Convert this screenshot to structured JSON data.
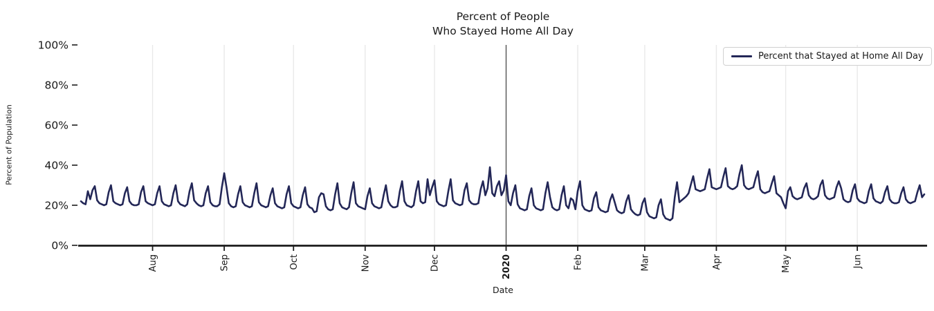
{
  "colors": {
    "line": "#232757",
    "month_grid": "#e9e9e9",
    "year_grid": "#3d3d3d",
    "axis": "#1a1a1a",
    "text": "#1a1a1a",
    "legend_border": "#d0d0d0",
    "background": "#ffffff"
  },
  "chart_data": {
    "type": "line",
    "title_lines": [
      "Percent of People",
      "Who Stayed Home All Day"
    ],
    "xlabel": "Date",
    "ylabel": "Percent of Population",
    "ylim": [
      0,
      100
    ],
    "grid": "vertical-month-lines-only",
    "legend_position": "upper right",
    "yticks": [
      {
        "label": "0%",
        "value": 0
      },
      {
        "label": "20%",
        "value": 20
      },
      {
        "label": "40%",
        "value": 40
      },
      {
        "label": "60%",
        "value": 60
      },
      {
        "label": "80%",
        "value": 80
      },
      {
        "label": "100%",
        "value": 100
      }
    ],
    "xticks": [
      {
        "label": "Aug",
        "day": 31,
        "bold": false
      },
      {
        "label": "Sep",
        "day": 62,
        "bold": false
      },
      {
        "label": "Oct",
        "day": 92,
        "bold": false
      },
      {
        "label": "Nov",
        "day": 123,
        "bold": false
      },
      {
        "label": "Dec",
        "day": 153,
        "bold": false
      },
      {
        "label": "2020",
        "day": 184,
        "bold": true
      },
      {
        "label": "Feb",
        "day": 215,
        "bold": false
      },
      {
        "label": "Mar",
        "day": 244,
        "bold": false
      },
      {
        "label": "Apr",
        "day": 275,
        "bold": false
      },
      {
        "label": "May",
        "day": 305,
        "bold": false
      },
      {
        "label": "Jun",
        "day": 336,
        "bold": false
      }
    ],
    "x_span_days": 366,
    "series": [
      {
        "name": "Percent that Stayed at Home All Day",
        "values": [
          22,
          21,
          20.5,
          27,
          23,
          27.5,
          29.5,
          22.5,
          21,
          20.5,
          20,
          20.5,
          26.5,
          30,
          22,
          21,
          20.5,
          20,
          20.5,
          26,
          29,
          22,
          20.5,
          20,
          20,
          20.5,
          26.5,
          29.5,
          22,
          21,
          20.5,
          20,
          20.5,
          26,
          29.5,
          22,
          20.5,
          20,
          19.5,
          20,
          26,
          30,
          22,
          20.5,
          20,
          19.5,
          20.5,
          27,
          31,
          22.5,
          21,
          20,
          19.5,
          20,
          26,
          29.5,
          21.5,
          20,
          19.5,
          19.5,
          20.5,
          29,
          36,
          29,
          21,
          19.5,
          19,
          19.5,
          25.5,
          29.5,
          21.5,
          20,
          19.5,
          19,
          19.5,
          26,
          31,
          21.5,
          20,
          19.5,
          19,
          19.5,
          25,
          28.5,
          21,
          19.5,
          19,
          18.5,
          19,
          25.5,
          29.5,
          21,
          19.5,
          19,
          18.5,
          19,
          25,
          29,
          20.5,
          19,
          18.5,
          16.5,
          17,
          24,
          26,
          25.5,
          19.5,
          18,
          17.5,
          18,
          25.5,
          31,
          21,
          19,
          18.5,
          18,
          19,
          26,
          31.5,
          21,
          19.5,
          19,
          18.5,
          18,
          24.5,
          28.5,
          21,
          19.5,
          19,
          18.5,
          19,
          25,
          30,
          22,
          20,
          19,
          19,
          19.5,
          27,
          32,
          22,
          20,
          19.5,
          19,
          20,
          27,
          32,
          22,
          21,
          21.5,
          33,
          25,
          29,
          32.5,
          22,
          20.5,
          20,
          19.5,
          20,
          27,
          33,
          22.5,
          21,
          20.5,
          20,
          20.5,
          27.5,
          31,
          22.5,
          21,
          20.5,
          20.5,
          21,
          28,
          32,
          25,
          28.5,
          39,
          26,
          24.5,
          29.5,
          32,
          25,
          27.5,
          35,
          22,
          20,
          26,
          30,
          20.5,
          18.5,
          18,
          17.5,
          18,
          24.5,
          28.5,
          20,
          18.5,
          18,
          17.5,
          18,
          26,
          31.5,
          24,
          19,
          18,
          17.5,
          18,
          25,
          29.5,
          20,
          18.5,
          23.5,
          22.5,
          18,
          27,
          32,
          20,
          18,
          17.5,
          17,
          17.5,
          23.5,
          26.5,
          19,
          17.5,
          17,
          16.5,
          17,
          22.5,
          25.5,
          21.5,
          17.5,
          16.5,
          16,
          16.5,
          22,
          25,
          18,
          16.5,
          15.5,
          15,
          15.5,
          21,
          23.5,
          16.5,
          14.5,
          14,
          13.5,
          14,
          20,
          23,
          15.5,
          13.5,
          13,
          12.5,
          13.5,
          24,
          31.5,
          21.5,
          22.5,
          23.5,
          24.5,
          26,
          30.5,
          34.5,
          28,
          27.5,
          27,
          27.5,
          28,
          33.5,
          38,
          29,
          28.5,
          28,
          28.5,
          29,
          34,
          38.5,
          29.5,
          28.5,
          28,
          28.5,
          29.5,
          35.5,
          40,
          30,
          28.5,
          28,
          28.5,
          29,
          33.5,
          37,
          28,
          26.5,
          26,
          26.5,
          27,
          31,
          34.5,
          26,
          25,
          24,
          21,
          18.5,
          27,
          29,
          24.5,
          23.5,
          23,
          23.5,
          24,
          28.5,
          31,
          25,
          23.5,
          23,
          23.5,
          24.5,
          30,
          32.5,
          25,
          23.5,
          23,
          23.5,
          24,
          29,
          32,
          28.5,
          23,
          22,
          21.5,
          22,
          27.5,
          30.5,
          23.5,
          22,
          21.5,
          21,
          21.5,
          27,
          30.5,
          23.5,
          22,
          21.5,
          21,
          22,
          26.5,
          29.5,
          23,
          21.5,
          21,
          21,
          21.5,
          26,
          29,
          23,
          21.5,
          21,
          21.5,
          22,
          26.5,
          30,
          24,
          25.5
        ]
      }
    ]
  }
}
